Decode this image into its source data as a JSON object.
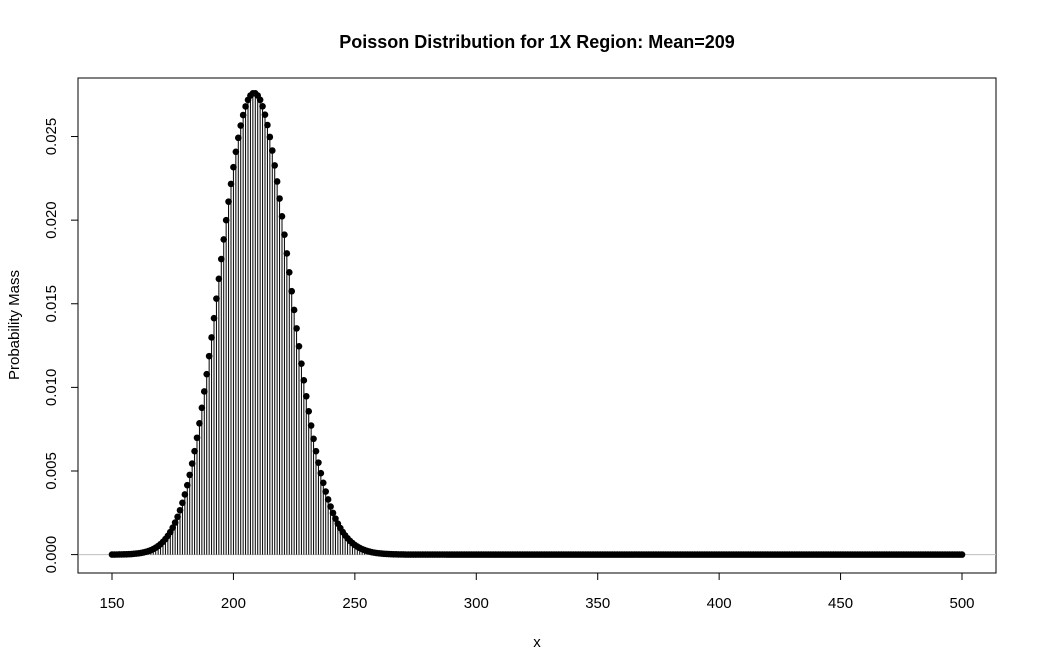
{
  "chart_data": {
    "type": "scatter",
    "title": "Poisson Distribution for 1X Region: Mean=209",
    "xlabel": "x",
    "ylabel": "Probability Mass",
    "mean": 209,
    "x_range_values": [
      150,
      500
    ],
    "xlim": [
      136,
      514
    ],
    "ylim": [
      -0.0011,
      0.0285
    ],
    "x_ticks": [
      "150",
      "200",
      "250",
      "300",
      "350",
      "400",
      "450",
      "500"
    ],
    "y_ticks": [
      "0.000",
      "0.005",
      "0.010",
      "0.015",
      "0.020",
      "0.025"
    ],
    "zero_line_color": "#bebebe",
    "point_style": "filled-circle with vertical drop lines",
    "grid": false
  }
}
